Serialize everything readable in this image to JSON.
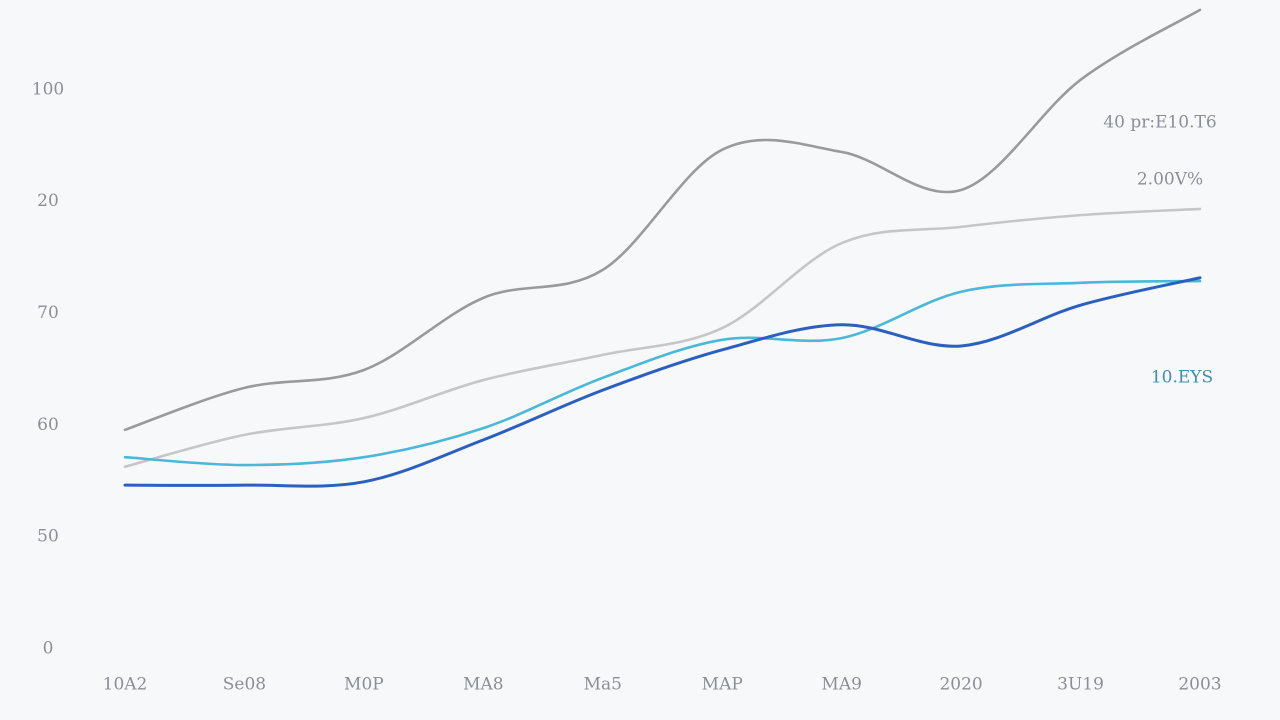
{
  "chart_data": {
    "type": "line",
    "categories": [
      "10A2",
      "Se08",
      "M0P",
      "MA8",
      "Ma5",
      "MAP",
      "MA9",
      "2020",
      "3U19",
      "2003"
    ],
    "series": [
      {
        "color": "#9a9a9a",
        "values": [
          39.2,
          46.7,
          49.9,
          62.8,
          67.8,
          89.3,
          88.9,
          82.1,
          101.8,
          114.3
        ]
      },
      {
        "color": "#c6c6c6",
        "values": [
          32.6,
          38.3,
          41.3,
          48.1,
          52.6,
          57.4,
          72.6,
          75.5,
          77.6,
          78.7
        ]
      },
      {
        "color": "#4ab8d8",
        "values": [
          34.3,
          32.9,
          34.3,
          39.5,
          48.5,
          55.3,
          55.6,
          63.9,
          65.5,
          65.8
        ]
      },
      {
        "color": "#2b5fc0",
        "values": [
          29.3,
          29.3,
          29.9,
          37.4,
          46.3,
          53.5,
          58.0,
          54.2,
          61.5,
          66.4
        ]
      }
    ],
    "ylim": [
      0,
      115
    ],
    "yticks": [
      0,
      {
        "value": 20,
        "label": "50"
      },
      {
        "value": 40,
        "label": "60"
      },
      {
        "value": 60,
        "label": "70"
      },
      {
        "value": 80,
        "label": "20"
      },
      100
    ],
    "annotations": [
      {
        "text": "40 pr:E10.T6",
        "color": "#8a8f96"
      },
      {
        "text": "2.00V%",
        "color": "#8a8f96"
      },
      {
        "text": "10.EYS",
        "color": "#3a8fb0"
      }
    ]
  }
}
